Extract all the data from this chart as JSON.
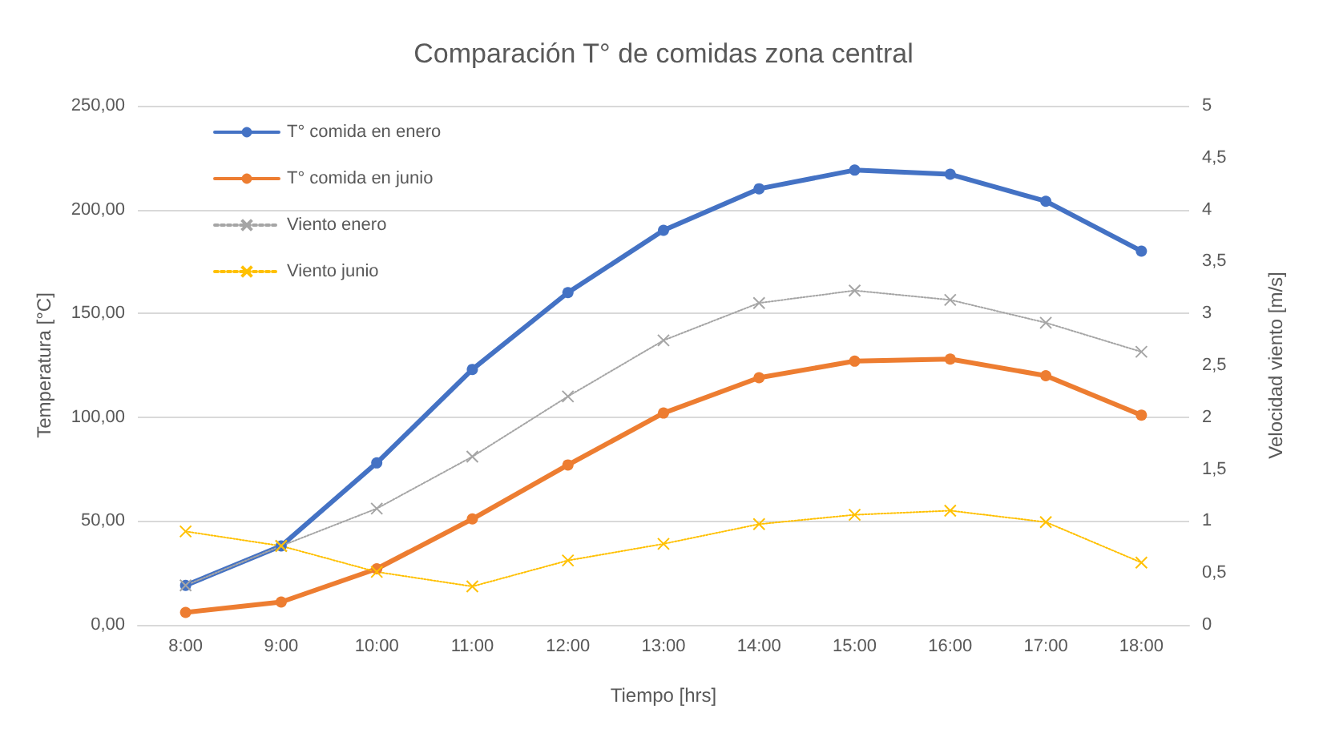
{
  "chart_data": {
    "type": "line",
    "title": "Comparación T° de comidas zona central",
    "xlabel": "Tiempo [hrs]",
    "ylabel": "Temperatura [°C]",
    "y2label": "Velocidad viento [m/s]",
    "categories": [
      "8:00",
      "9:00",
      "10:00",
      "11:00",
      "12:00",
      "13:00",
      "14:00",
      "15:00",
      "16:00",
      "17:00",
      "18:00"
    ],
    "series": [
      {
        "name": "T° comida en enero",
        "color": "#4472c4",
        "marker": "circle",
        "line_style": "solid",
        "values": [
          19,
          38,
          78,
          123,
          160,
          190,
          210,
          219,
          217,
          204,
          180
        ]
      },
      {
        "name": "T° comida en junio",
        "color": "#ed7d31",
        "marker": "circle",
        "line_style": "solid",
        "values": [
          6,
          11,
          27,
          51,
          77,
          102,
          119,
          127,
          128,
          120,
          101
        ]
      },
      {
        "name": "Viento enero",
        "color": "#a5a5a5",
        "marker": "cross",
        "line_style": "dotted",
        "axis": "y2",
        "values": [
          0.38,
          0.76,
          1.12,
          1.62,
          2.2,
          2.74,
          3.1,
          3.22,
          3.13,
          2.91,
          2.63
        ]
      },
      {
        "name": "Viento junio",
        "color": "#ffc000",
        "marker": "cross",
        "line_style": "dotted",
        "axis": "y2",
        "values": [
          0.9,
          0.76,
          0.51,
          0.37,
          0.62,
          0.78,
          0.97,
          1.06,
          1.1,
          0.99,
          0.6
        ]
      }
    ],
    "ylim": [
      0,
      250
    ],
    "yticks": [
      {
        "value": 0,
        "label": "0,00"
      },
      {
        "value": 50,
        "label": "50,00"
      },
      {
        "value": 100,
        "label": "100,00"
      },
      {
        "value": 150,
        "label": "150,00"
      },
      {
        "value": 200,
        "label": "200,00"
      },
      {
        "value": 250,
        "label": "250,00"
      }
    ],
    "y2lim": [
      0,
      5
    ],
    "y2ticks": [
      0,
      {
        "value": 0.5,
        "label": "0,5"
      },
      1,
      {
        "value": 1.5,
        "label": "1,5"
      },
      2,
      {
        "value": 2.5,
        "label": "2,5"
      },
      3,
      {
        "value": 3.5,
        "label": "3,5"
      },
      4,
      {
        "value": 4.5,
        "label": "4,5"
      },
      5
    ],
    "grid": "y",
    "legend": "top left"
  }
}
